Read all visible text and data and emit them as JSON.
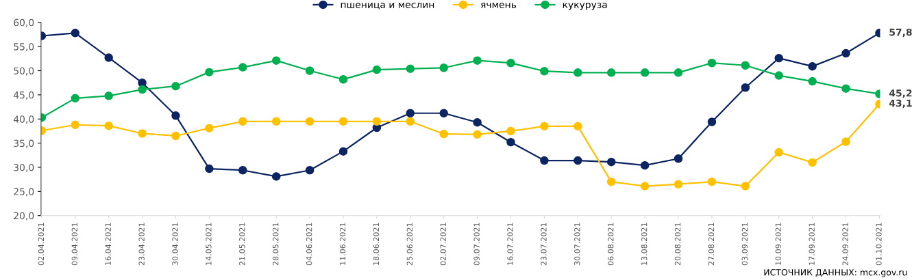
{
  "chart_data": {
    "type": "line",
    "categories": [
      "02.04.2021",
      "09.04.2021",
      "16.04.2021",
      "23.04.2021",
      "30.04.2021",
      "14.05.2021",
      "21.05.2021",
      "28.05.2021",
      "04.06.2021",
      "11.06.2021",
      "18.06.2021",
      "25.06.2021",
      "02.07.2021",
      "09.07.2021",
      "16.07.2021",
      "23.07.2021",
      "30.07.2021",
      "06.08.2021",
      "13.08.2021",
      "20.08.2021",
      "27.08.2021",
      "03.09.2021",
      "10.09.2021",
      "17.09.2021",
      "24.09.2021",
      "01.10.2021"
    ],
    "series": [
      {
        "name": "пшеница и меслин",
        "color": "#0c2461",
        "values": [
          57.2,
          57.8,
          52.7,
          47.5,
          40.7,
          29.7,
          29.4,
          28.1,
          29.4,
          33.3,
          38.2,
          41.2,
          41.2,
          39.3,
          35.2,
          31.4,
          31.4,
          31.1,
          30.4,
          31.8,
          39.4,
          46.5,
          52.6,
          50.9,
          53.6,
          57.8
        ],
        "value_labels": [
          null,
          null,
          null,
          null,
          null,
          null,
          null,
          null,
          null,
          null,
          null,
          null,
          null,
          null,
          null,
          null,
          null,
          null,
          null,
          null,
          null,
          null,
          null,
          null,
          null,
          "57,8"
        ]
      },
      {
        "name": "ячмень",
        "color": "#ffc000",
        "values": [
          37.6,
          38.8,
          38.6,
          37.0,
          36.5,
          38.1,
          39.5,
          39.5,
          39.5,
          39.5,
          39.5,
          39.5,
          36.9,
          36.8,
          37.5,
          38.5,
          38.5,
          27.0,
          26.1,
          26.5,
          27.0,
          26.1,
          33.1,
          31.0,
          35.3,
          43.1
        ],
        "value_labels": [
          null,
          null,
          null,
          null,
          null,
          null,
          null,
          null,
          null,
          null,
          null,
          null,
          null,
          null,
          null,
          null,
          null,
          null,
          null,
          null,
          null,
          null,
          null,
          null,
          null,
          "43,1"
        ]
      },
      {
        "name": "кукуруза",
        "color": "#00b050",
        "values": [
          40.3,
          44.3,
          44.8,
          46.1,
          46.8,
          49.7,
          50.7,
          52.1,
          50.0,
          48.2,
          50.2,
          50.4,
          50.6,
          52.1,
          51.6,
          49.9,
          49.6,
          49.6,
          49.6,
          49.6,
          51.6,
          51.1,
          49.0,
          47.8,
          46.3,
          45.2
        ],
        "value_labels": [
          null,
          null,
          null,
          null,
          null,
          null,
          null,
          null,
          null,
          null,
          null,
          null,
          null,
          null,
          null,
          null,
          null,
          null,
          null,
          null,
          null,
          null,
          null,
          null,
          null,
          "45,2"
        ]
      }
    ],
    "ylim": [
      20,
      60
    ],
    "yticks": [
      {
        "value": 20,
        "label": "20,0"
      },
      {
        "value": 25,
        "label": "25,0"
      },
      {
        "value": 30,
        "label": "30,0"
      },
      {
        "value": 35,
        "label": "35,0"
      },
      {
        "value": 40,
        "label": "40,0"
      },
      {
        "value": 45,
        "label": "45,0"
      },
      {
        "value": 50,
        "label": "50,0"
      },
      {
        "value": 55,
        "label": "55,0"
      },
      {
        "value": 60,
        "label": "60,0"
      }
    ],
    "grid": false,
    "legend": "top",
    "marker": "circle",
    "line_style": "solid",
    "annotations": [
      "ИСТОЧНИК ДАННЫХ: mcx.gov.ru"
    ]
  }
}
